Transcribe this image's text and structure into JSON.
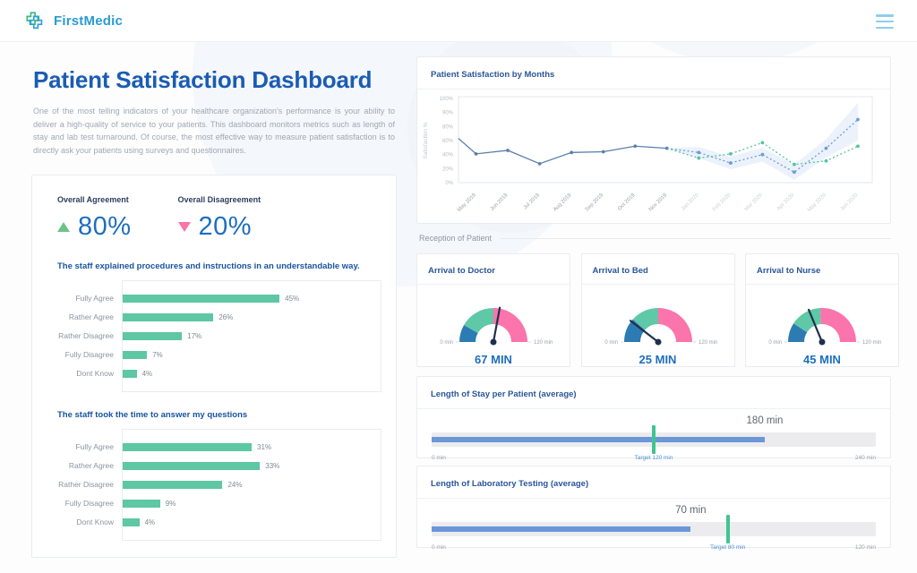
{
  "header": {
    "brand": "FirstMedic",
    "logo_icon": "medical-cross",
    "menu_icon": "hamburger"
  },
  "page": {
    "title": "Patient Satisfaction Dashboard",
    "description": "One of the most telling indicators of your healthcare organization's performance is your ability to deliver a high-quality of service to your patients. This dashboard monitors metrics such as length of stay and lab test turnaround. Of course, the most effective way to measure patient satisfaction is to directly ask your patients using surveys and questionnaires."
  },
  "stats": [
    {
      "label": "Overall Agreement",
      "value": "80%",
      "direction": "up",
      "color": "#6dc289"
    },
    {
      "label": "Overall Disagreement",
      "value": "20%",
      "direction": "down",
      "color": "#f874a9"
    }
  ],
  "surveys": [
    {
      "title": "The staff explained procedures and instructions in an understandable way.",
      "categories": [
        "Fully Agree",
        "Rather Agree",
        "Rather Disagree",
        "Fully Disagree",
        "Dont Know"
      ],
      "values": [
        45,
        26,
        17,
        7,
        4
      ],
      "unit": "%",
      "xmax": 74,
      "bar_color": "#5ec7a4"
    },
    {
      "title": "The staff took the time to answer my questions",
      "categories": [
        "Fully Agree",
        "Rather Agree",
        "Rather Disagree",
        "Fully Disagree",
        "Dont Know"
      ],
      "values": [
        31,
        33,
        24,
        9,
        4
      ],
      "unit": "%",
      "xmax": 62,
      "bar_color": "#5ec7a4"
    }
  ],
  "line_chart": {
    "type": "line",
    "title": "Patient Satisfaction by Months",
    "ylabel": "Satisfaction %",
    "y_tick_labels": [
      "100%",
      "90%",
      "80%",
      "60%",
      "40%",
      "20%",
      "0%"
    ],
    "y_tick_values": [
      100,
      90,
      80,
      60,
      40,
      20,
      0
    ],
    "x_labels": [
      "May 2019",
      "Jun 2019",
      "Jul 2019",
      "Aug 2019",
      "Sep 2019",
      "Oct 2019",
      "Nov 2019",
      "Jan 2020",
      "Feb 2020",
      "Mar 2020",
      "Apr 2020",
      "May 2020",
      "Jun 2020"
    ],
    "historical_count": 7,
    "series": [
      {
        "name": "actual",
        "style": "solid",
        "color": "#5b7fae",
        "start_edge_value": 63,
        "tick_offset": 0,
        "values": [
          41,
          46,
          27,
          43,
          44,
          52,
          49
        ]
      },
      {
        "name": "forecast-blue",
        "style": "dashed",
        "color": "#6f9bd8",
        "tick_offset": 6,
        "values": [
          49,
          43,
          28,
          40,
          15,
          49,
          85
        ]
      },
      {
        "name": "forecast-green",
        "style": "dashed",
        "color": "#55c39e",
        "tick_offset": 6,
        "values": [
          49,
          35,
          41,
          57,
          26,
          31,
          52
        ]
      }
    ],
    "band": {
      "tick_offset": 6,
      "upper": [
        49,
        51,
        37,
        50,
        26,
        62,
        97
      ],
      "lower": [
        49,
        35,
        19,
        30,
        4,
        36,
        60
      ],
      "color": "#dce8f8"
    }
  },
  "reception": {
    "label": "Reception of Patient",
    "gauges": [
      {
        "title": "Arrival to Doctor",
        "value": 67,
        "max": 120,
        "value_label": "67 MIN",
        "min_label": "0 min",
        "max_label": "120 min",
        "segments": [
          {
            "from": 0,
            "to": 20,
            "color": "#2c7bb2"
          },
          {
            "from": 20,
            "to": 60,
            "color": "#5fc8a6"
          },
          {
            "from": 60,
            "to": 120,
            "color": "#fb74ab"
          }
        ]
      },
      {
        "title": "Arrival to Bed",
        "value": 25,
        "max": 120,
        "value_label": "25 MIN",
        "min_label": "0 min",
        "max_label": "120 min",
        "segments": [
          {
            "from": 0,
            "to": 28,
            "color": "#2c7bb2"
          },
          {
            "from": 28,
            "to": 60,
            "color": "#5fc8a6"
          },
          {
            "from": 60,
            "to": 120,
            "color": "#fb74ab"
          }
        ]
      },
      {
        "title": "Arrival to Nurse",
        "value": 45,
        "max": 120,
        "value_label": "45 MIN",
        "min_label": "0 min",
        "max_label": "120 min",
        "segments": [
          {
            "from": 0,
            "to": 22,
            "color": "#2c7bb2"
          },
          {
            "from": 22,
            "to": 58,
            "color": "#5fc8a6"
          },
          {
            "from": 58,
            "to": 120,
            "color": "#fb74ab"
          }
        ]
      }
    ]
  },
  "bullets": [
    {
      "title": "Length of Stay per Patient (average)",
      "value": 180,
      "max": 240,
      "target": 120,
      "value_label": "180 min",
      "target_label": "Target 120 min",
      "min_label": "0 min",
      "max_label": "240 min",
      "bar_color": "#6b97d8",
      "target_color": "#40c492"
    },
    {
      "title": "Length of Laboratory Testing (average)",
      "value": 70,
      "max": 120,
      "target": 80,
      "value_label": "70 min",
      "target_label": "Target 80 min",
      "min_label": "0 min",
      "max_label": "120 min",
      "bar_color": "#6b97d8",
      "target_color": "#40c492"
    }
  ],
  "colors": {
    "brand_blue": "#2b9ad3",
    "logo_green": "#3cb878",
    "logo_blue": "#2e9fd4",
    "title_blue": "#1a5cb4",
    "value_blue": "#1d6ec0",
    "bar_teal": "#5ec7a4",
    "gauge_blue": "#2c7bb2",
    "gauge_teal": "#5fc8a6",
    "gauge_pink": "#fb74ab",
    "needle_navy": "#20304f"
  }
}
